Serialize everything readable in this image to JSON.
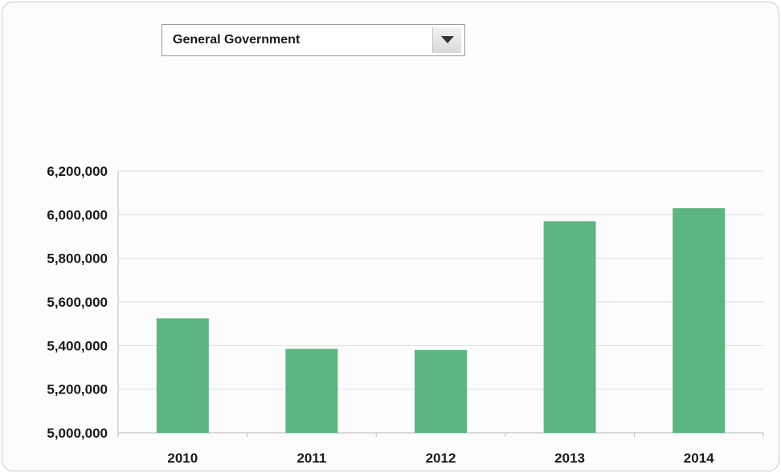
{
  "filter": {
    "selected": "General Government"
  },
  "colors": {
    "bar": "#5db581",
    "grid": "#d8dde0",
    "axis": "#b9b9b9"
  },
  "chart_data": {
    "type": "bar",
    "title": "",
    "xlabel": "",
    "ylabel": "",
    "categories": [
      "2010",
      "2011",
      "2012",
      "2013",
      "2014"
    ],
    "values": [
      5525000,
      5385000,
      5380000,
      5970000,
      6030000
    ],
    "ylim": [
      5000000,
      6200000
    ],
    "yticks": [
      5000000,
      5200000,
      5400000,
      5600000,
      5800000,
      6000000,
      6200000
    ],
    "ytick_labels": [
      "5,000,000",
      "5,200,000",
      "5,400,000",
      "5,600,000",
      "5,800,000",
      "6,000,000",
      "6,200,000"
    ],
    "grid": true,
    "legend": "none"
  }
}
